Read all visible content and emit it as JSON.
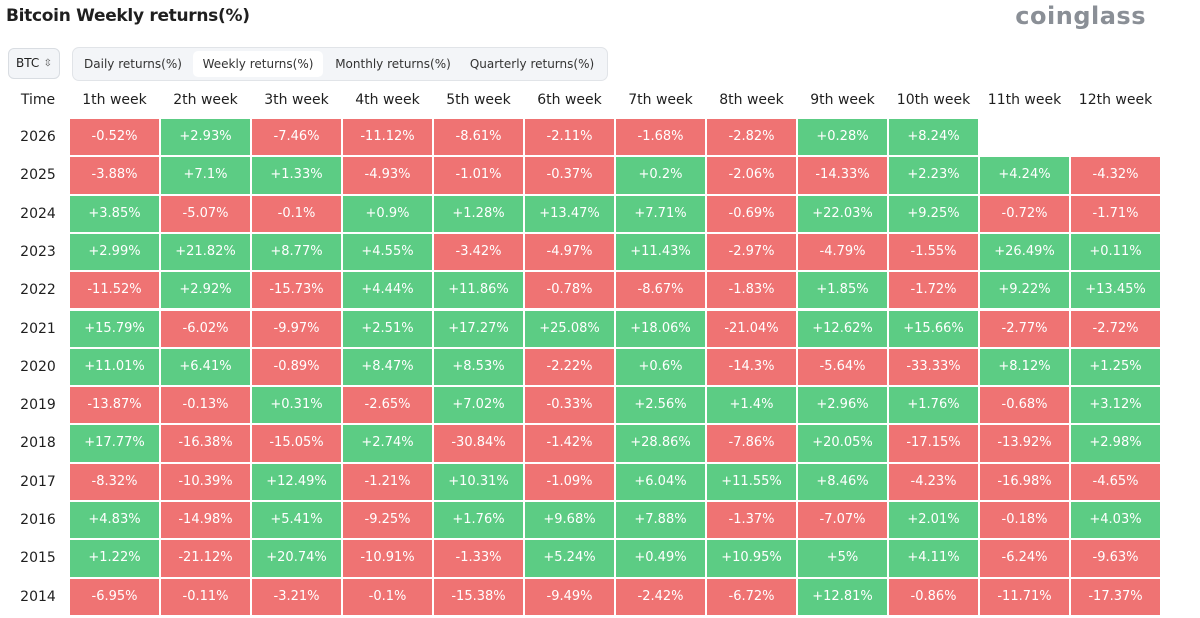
{
  "header": {
    "title": "Bitcoin Weekly returns(%)",
    "logo": "coinglass"
  },
  "controls": {
    "asset": "BTC",
    "tabs": [
      "Daily returns(%)",
      "Weekly returns(%)",
      "Monthly returns(%)",
      "Quarterly returns(%)"
    ],
    "active_tab": 1
  },
  "colors": {
    "positive": "#5ccc84",
    "negative": "#ef7373"
  },
  "table": {
    "columns": [
      "Time",
      "1th week",
      "2th week",
      "3th week",
      "4th week",
      "5th week",
      "6th week",
      "7th week",
      "8th week",
      "9th week",
      "10th week",
      "11th week",
      "12th week"
    ],
    "rows": [
      {
        "year": "2026",
        "cells": [
          "-0.52%",
          "+2.93%",
          "-7.46%",
          "-11.12%",
          "-8.61%",
          "-2.11%",
          "-1.68%",
          "-2.82%",
          "+0.28%",
          "+8.24%"
        ]
      },
      {
        "year": "2025",
        "cells": [
          "-3.88%",
          "+7.1%",
          "+1.33%",
          "-4.93%",
          "-1.01%",
          "-0.37%",
          "+0.2%",
          "-2.06%",
          "-14.33%",
          "+2.23%",
          "+4.24%",
          "-4.32%"
        ]
      },
      {
        "year": "2024",
        "cells": [
          "+3.85%",
          "-5.07%",
          "-0.1%",
          "+0.9%",
          "+1.28%",
          "+13.47%",
          "+7.71%",
          "-0.69%",
          "+22.03%",
          "+9.25%",
          "-0.72%",
          "-1.71%"
        ]
      },
      {
        "year": "2023",
        "cells": [
          "+2.99%",
          "+21.82%",
          "+8.77%",
          "+4.55%",
          "-3.42%",
          "-4.97%",
          "+11.43%",
          "-2.97%",
          "-4.79%",
          "-1.55%",
          "+26.49%",
          "+0.11%"
        ]
      },
      {
        "year": "2022",
        "cells": [
          "-11.52%",
          "+2.92%",
          "-15.73%",
          "+4.44%",
          "+11.86%",
          "-0.78%",
          "-8.67%",
          "-1.83%",
          "+1.85%",
          "-1.72%",
          "+9.22%",
          "+13.45%"
        ]
      },
      {
        "year": "2021",
        "cells": [
          "+15.79%",
          "-6.02%",
          "-9.97%",
          "+2.51%",
          "+17.27%",
          "+25.08%",
          "+18.06%",
          "-21.04%",
          "+12.62%",
          "+15.66%",
          "-2.77%",
          "-2.72%"
        ]
      },
      {
        "year": "2020",
        "cells": [
          "+11.01%",
          "+6.41%",
          "-0.89%",
          "+8.47%",
          "+8.53%",
          "-2.22%",
          "+0.6%",
          "-14.3%",
          "-5.64%",
          "-33.33%",
          "+8.12%",
          "+1.25%"
        ]
      },
      {
        "year": "2019",
        "cells": [
          "-13.87%",
          "-0.13%",
          "+0.31%",
          "-2.65%",
          "+7.02%",
          "-0.33%",
          "+2.56%",
          "+1.4%",
          "+2.96%",
          "+1.76%",
          "-0.68%",
          "+3.12%"
        ]
      },
      {
        "year": "2018",
        "cells": [
          "+17.77%",
          "-16.38%",
          "-15.05%",
          "+2.74%",
          "-30.84%",
          "-1.42%",
          "+28.86%",
          "-7.86%",
          "+20.05%",
          "-17.15%",
          "-13.92%",
          "+2.98%"
        ]
      },
      {
        "year": "2017",
        "cells": [
          "-8.32%",
          "-10.39%",
          "+12.49%",
          "-1.21%",
          "+10.31%",
          "-1.09%",
          "+6.04%",
          "+11.55%",
          "+8.46%",
          "-4.23%",
          "-16.98%",
          "-4.65%"
        ]
      },
      {
        "year": "2016",
        "cells": [
          "+4.83%",
          "-14.98%",
          "+5.41%",
          "-9.25%",
          "+1.76%",
          "+9.68%",
          "+7.88%",
          "-1.37%",
          "-7.07%",
          "+2.01%",
          "-0.18%",
          "+4.03%"
        ]
      },
      {
        "year": "2015",
        "cells": [
          "+1.22%",
          "-21.12%",
          "+20.74%",
          "-10.91%",
          "-1.33%",
          "+5.24%",
          "+0.49%",
          "+10.95%",
          "+5%",
          "+4.11%",
          "-6.24%",
          "-9.63%"
        ]
      },
      {
        "year": "2014",
        "cells": [
          "-6.95%",
          "-0.11%",
          "-3.21%",
          "-0.1%",
          "-15.38%",
          "-9.49%",
          "-2.42%",
          "-6.72%",
          "+12.81%",
          "-0.86%",
          "-11.71%",
          "-17.37%"
        ]
      }
    ]
  }
}
